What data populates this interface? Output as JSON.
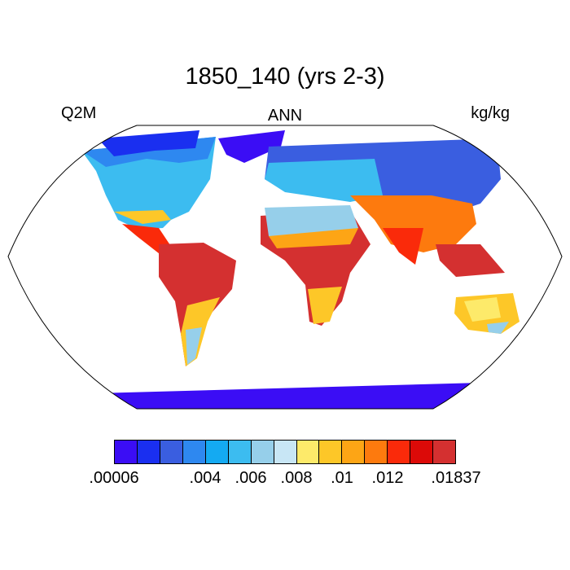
{
  "title": "1850_140 (yrs 2-3)",
  "left_label": "Q2M",
  "center_label": "ANN",
  "right_label": "kg/kg",
  "colorbar": {
    "colors": [
      "#3b0df5",
      "#1a2ff0",
      "#3a5ee0",
      "#2e88f0",
      "#14aaf2",
      "#3cbcf0",
      "#96cfea",
      "#c8e6f5",
      "#fdea6a",
      "#fdc728",
      "#fda515",
      "#fd7a0e",
      "#fa2a0a",
      "#dc0a08",
      "#d43030"
    ],
    "ticks": [
      {
        "label": ".00006",
        "index": 0
      },
      {
        "label": ".004",
        "index": 4
      },
      {
        "label": ".006",
        "index": 6
      },
      {
        "label": ".008",
        "index": 8
      },
      {
        "label": ".01",
        "index": 10
      },
      {
        "label": ".012",
        "index": 12
      },
      {
        "label": ".01837",
        "index": 15
      }
    ]
  }
}
